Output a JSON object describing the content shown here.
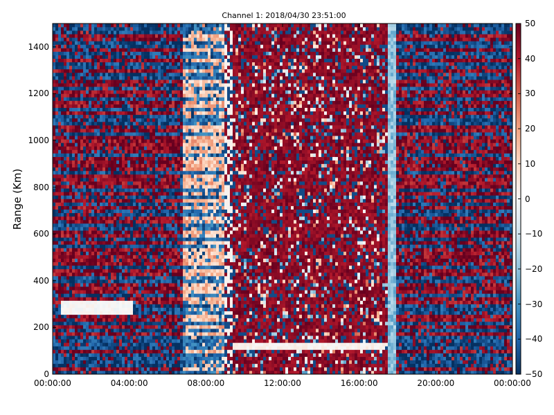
{
  "chart_data": {
    "type": "heatmap",
    "title": "Channel 1: 2018/04/30 23:51:00",
    "xlabel": "",
    "ylabel": "Range (Km)",
    "x_ticks": [
      "00:00:00",
      "04:00:00",
      "08:00:00",
      "12:00:00",
      "16:00:00",
      "20:00:00",
      "00:00:00"
    ],
    "x_tick_hours": [
      0,
      4,
      8,
      12,
      16,
      20,
      24
    ],
    "xlim_hours": [
      0,
      24
    ],
    "y_ticks": [
      0,
      200,
      400,
      600,
      800,
      1000,
      1200,
      1400
    ],
    "ylim": [
      0,
      1500
    ],
    "colorbar": {
      "ticks": [
        50,
        40,
        30,
        20,
        10,
        0,
        -10,
        -20,
        -30,
        -40,
        -50
      ],
      "range": [
        -50,
        50
      ],
      "colormap": "RdBu_r",
      "low_color": "#053061",
      "mid_color": "#f7f7f7",
      "high_color": "#67001f"
    },
    "time_segments_hours": [
      {
        "start": 0,
        "end": 6.85,
        "pattern": "banded",
        "mean": 20,
        "spread": 55
      },
      {
        "start": 6.85,
        "end": 9.0,
        "pattern": "banded-blue",
        "mean": -15,
        "spread": 55
      },
      {
        "start": 9.0,
        "end": 9.35,
        "pattern": "noisy-light",
        "mean": 0,
        "spread": 40
      },
      {
        "start": 9.35,
        "end": 17.5,
        "pattern": "noisy",
        "mean": 30,
        "spread": 70
      },
      {
        "start": 17.5,
        "end": 18.0,
        "pattern": "light-blue",
        "mean": -20,
        "spread": 15
      },
      {
        "start": 18.0,
        "end": 24,
        "pattern": "banded",
        "mean": 20,
        "spread": 55
      }
    ],
    "features": [
      {
        "name": "low-range white band",
        "hours": [
          9.35,
          17.3
        ],
        "range_km": [
          100,
          140
        ],
        "value": 2
      },
      {
        "name": "low-range light band",
        "hours": [
          0.4,
          4.2
        ],
        "range_km": [
          255,
          310
        ],
        "value": 0
      }
    ]
  }
}
